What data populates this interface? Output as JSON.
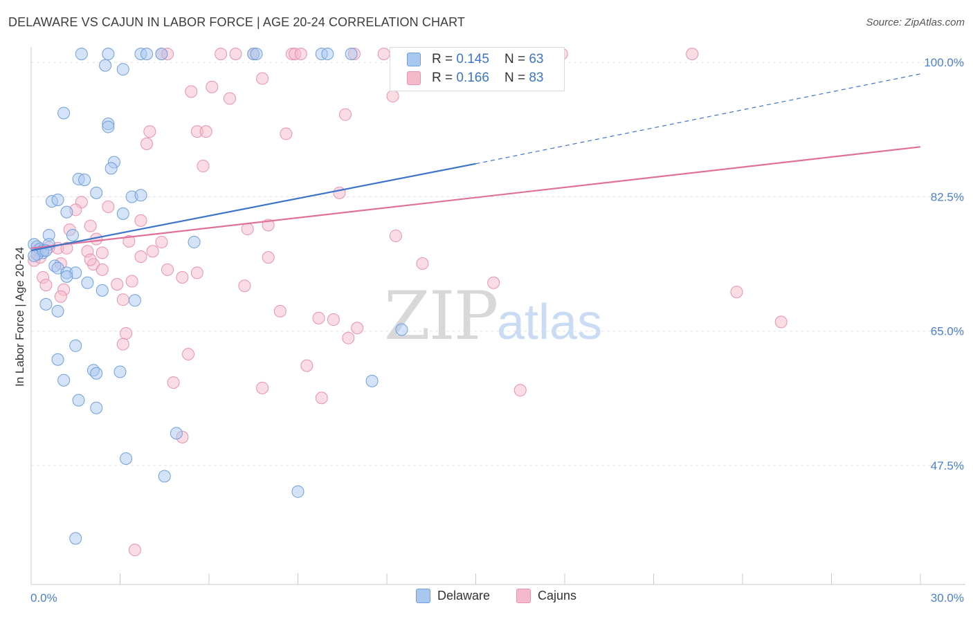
{
  "title": "DELAWARE VS CAJUN IN LABOR FORCE | AGE 20-24 CORRELATION CHART",
  "source": "Source: ZipAtlas.com",
  "legend": {
    "delaware": {
      "r_label": "R =",
      "r_value": "0.145",
      "n_label": "N =",
      "n_value": "63"
    },
    "cajuns": {
      "r_label": "R =",
      "r_value": "0.166",
      "n_label": "N =",
      "n_value": "83"
    }
  },
  "bottom_legend": [
    "Delaware",
    "Cajuns"
  ],
  "colors": {
    "blue_fill": "#a9c8ef",
    "blue_stroke": "#6e9fdc",
    "blue_line": "#3b74c8",
    "pink_fill": "#f5b9cc",
    "pink_stroke": "#e991ad",
    "pink_line": "#e0709a",
    "axis_text": "#4a7fd0",
    "grid": "#e0e0e0"
  },
  "chart_data": {
    "type": "scatter",
    "title": "DELAWARE VS CAJUN IN LABOR FORCE | AGE 20-24 CORRELATION CHART",
    "xlabel": "",
    "ylabel": "In Labor Force | Age 20-24",
    "xlim": [
      0,
      30
    ],
    "ylim": [
      32,
      102
    ],
    "x_tick_labels": [
      "0.0%",
      "30.0%"
    ],
    "y_ticks": [
      47.5,
      65.0,
      82.5,
      100.0
    ],
    "y_tick_labels": [
      "47.5%",
      "65.0%",
      "82.5%",
      "100.0%"
    ],
    "watermark": {
      "zip": "ZIP",
      "atlas": "atlas"
    },
    "series": [
      {
        "name": "Delaware",
        "r": 0.145,
        "n": 63,
        "trend": {
          "x0": 0.0,
          "y0": 75.5,
          "x1": 15.0,
          "y1": 86.8,
          "dash_x1": 30.0,
          "dash_y1": 98.5
        },
        "points": [
          [
            1.7,
            101.1
          ],
          [
            2.6,
            101.1
          ],
          [
            3.7,
            101.1
          ],
          [
            3.9,
            101.1
          ],
          [
            4.4,
            101.1
          ],
          [
            7.5,
            101.1
          ],
          [
            7.6,
            101.1
          ],
          [
            9.8,
            101.1
          ],
          [
            10.0,
            101.1
          ],
          [
            10.8,
            101.1
          ],
          [
            2.5,
            99.6
          ],
          [
            3.1,
            99.1
          ],
          [
            1.1,
            93.4
          ],
          [
            2.6,
            92.0
          ],
          [
            2.6,
            91.6
          ],
          [
            2.8,
            87.0
          ],
          [
            2.7,
            86.2
          ],
          [
            1.6,
            84.8
          ],
          [
            1.8,
            84.7
          ],
          [
            2.2,
            83.0
          ],
          [
            3.4,
            82.5
          ],
          [
            3.7,
            82.7
          ],
          [
            0.7,
            81.9
          ],
          [
            0.9,
            82.1
          ],
          [
            1.2,
            80.5
          ],
          [
            3.1,
            80.3
          ],
          [
            1.4,
            77.5
          ],
          [
            0.6,
            77.5
          ],
          [
            0.1,
            76.3
          ],
          [
            0.2,
            76.0
          ],
          [
            0.3,
            75.7
          ],
          [
            0.4,
            75.2
          ],
          [
            0.2,
            75.0
          ],
          [
            0.1,
            74.8
          ],
          [
            0.4,
            75.5
          ],
          [
            0.6,
            76.3
          ],
          [
            0.5,
            75.5
          ],
          [
            0.8,
            73.5
          ],
          [
            0.9,
            73.2
          ],
          [
            1.2,
            72.6
          ],
          [
            1.5,
            72.6
          ],
          [
            1.2,
            72.1
          ],
          [
            1.9,
            71.3
          ],
          [
            2.4,
            70.3
          ],
          [
            3.5,
            69.0
          ],
          [
            0.5,
            68.5
          ],
          [
            0.9,
            67.6
          ],
          [
            12.5,
            65.2
          ],
          [
            1.5,
            63.1
          ],
          [
            0.9,
            61.3
          ],
          [
            2.1,
            59.9
          ],
          [
            2.2,
            59.5
          ],
          [
            3.0,
            59.7
          ],
          [
            1.1,
            58.6
          ],
          [
            11.5,
            58.5
          ],
          [
            1.6,
            56.0
          ],
          [
            2.2,
            55.0
          ],
          [
            4.9,
            51.7
          ],
          [
            3.2,
            48.4
          ],
          [
            4.5,
            46.1
          ],
          [
            9.0,
            44.1
          ],
          [
            1.5,
            38.0
          ],
          [
            5.5,
            76.6
          ]
        ]
      },
      {
        "name": "Cajuns",
        "r": 0.166,
        "n": 83,
        "trend": {
          "x0": 0.0,
          "y0": 75.8,
          "x1": 30.0,
          "y1": 89.0
        },
        "points": [
          [
            4.4,
            101.1
          ],
          [
            4.6,
            101.1
          ],
          [
            6.4,
            101.1
          ],
          [
            6.9,
            101.1
          ],
          [
            7.5,
            101.1
          ],
          [
            8.8,
            101.1
          ],
          [
            8.9,
            101.1
          ],
          [
            9.1,
            101.1
          ],
          [
            10.9,
            101.1
          ],
          [
            11.9,
            101.1
          ],
          [
            12.6,
            101.1
          ],
          [
            17.9,
            101.1
          ],
          [
            22.3,
            101.1
          ],
          [
            7.8,
            97.9
          ],
          [
            6.1,
            96.8
          ],
          [
            5.4,
            96.2
          ],
          [
            6.7,
            95.3
          ],
          [
            12.2,
            95.6
          ],
          [
            10.6,
            93.2
          ],
          [
            4.0,
            91.0
          ],
          [
            5.6,
            91.0
          ],
          [
            5.9,
            91.0
          ],
          [
            8.6,
            90.7
          ],
          [
            3.9,
            89.4
          ],
          [
            5.8,
            86.5
          ],
          [
            10.4,
            83.0
          ],
          [
            1.7,
            81.8
          ],
          [
            2.6,
            81.2
          ],
          [
            1.5,
            80.8
          ],
          [
            3.7,
            79.4
          ],
          [
            2.0,
            78.7
          ],
          [
            8.0,
            78.8
          ],
          [
            7.3,
            78.3
          ],
          [
            1.3,
            78.2
          ],
          [
            2.2,
            77.0
          ],
          [
            12.3,
            77.4
          ],
          [
            3.3,
            76.7
          ],
          [
            4.4,
            76.6
          ],
          [
            0.9,
            75.8
          ],
          [
            1.2,
            75.8
          ],
          [
            1.9,
            75.4
          ],
          [
            2.4,
            75.2
          ],
          [
            4.1,
            75.4
          ],
          [
            3.7,
            74.7
          ],
          [
            0.1,
            74.2
          ],
          [
            0.3,
            74.6
          ],
          [
            8.0,
            74.6
          ],
          [
            13.2,
            73.8
          ],
          [
            1.0,
            73.8
          ],
          [
            2.1,
            73.7
          ],
          [
            2.4,
            73.0
          ],
          [
            4.6,
            73.0
          ],
          [
            5.6,
            72.6
          ],
          [
            0.4,
            72.0
          ],
          [
            5.1,
            72.0
          ],
          [
            0.5,
            71.0
          ],
          [
            3.4,
            71.5
          ],
          [
            2.9,
            71.1
          ],
          [
            7.2,
            70.9
          ],
          [
            1.1,
            70.4
          ],
          [
            3.1,
            69.1
          ],
          [
            15.6,
            71.3
          ],
          [
            23.8,
            70.1
          ],
          [
            1.0,
            69.5
          ],
          [
            8.4,
            67.6
          ],
          [
            9.7,
            66.7
          ],
          [
            10.2,
            66.5
          ],
          [
            11.0,
            65.4
          ],
          [
            25.3,
            66.2
          ],
          [
            3.2,
            64.7
          ],
          [
            10.7,
            64.1
          ],
          [
            3.1,
            63.3
          ],
          [
            5.3,
            62.0
          ],
          [
            9.3,
            60.5
          ],
          [
            4.8,
            58.3
          ],
          [
            7.8,
            57.6
          ],
          [
            9.8,
            56.3
          ],
          [
            16.5,
            57.3
          ],
          [
            5.1,
            51.2
          ],
          [
            3.5,
            36.5
          ],
          [
            0.2,
            75.6
          ],
          [
            0.6,
            75.9
          ],
          [
            2.0,
            74.3
          ]
        ]
      }
    ]
  }
}
